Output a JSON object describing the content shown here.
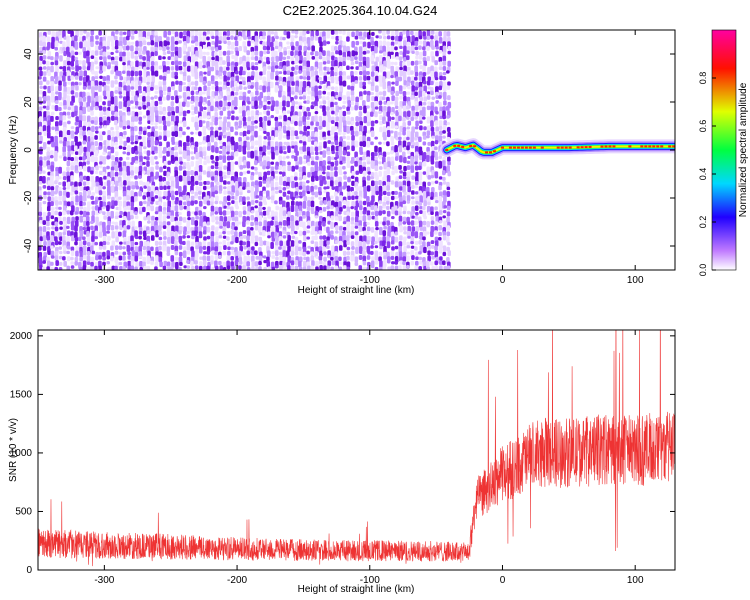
{
  "title": "C2E2.2025.364.10.04.G24",
  "chart_data": [
    {
      "type": "heatmap",
      "xlabel": "Height of straight line (km)",
      "ylabel": "Frequency (Hz)",
      "xlim": [
        -350,
        130
      ],
      "ylim": [
        -50,
        50
      ],
      "xticks": [
        -300,
        -200,
        -100,
        0,
        100
      ],
      "yticks": [
        -40,
        -20,
        0,
        20,
        40
      ],
      "noise_region": [
        -350,
        -42
      ],
      "signal_track": [
        {
          "x": -42,
          "y": 0
        },
        {
          "x": -35,
          "y": 2
        },
        {
          "x": -28,
          "y": 1
        },
        {
          "x": -22,
          "y": 2
        },
        {
          "x": -15,
          "y": -1
        },
        {
          "x": -8,
          "y": -1
        },
        {
          "x": 0,
          "y": 1
        },
        {
          "x": 20,
          "y": 1
        },
        {
          "x": 50,
          "y": 1
        },
        {
          "x": 80,
          "y": 1.5
        },
        {
          "x": 100,
          "y": 1.5
        },
        {
          "x": 130,
          "y": 1.5
        }
      ],
      "colorbar": {
        "label": "Normalized spectral amplitude",
        "range": [
          0,
          1
        ],
        "ticks": [
          "0.0",
          "0.2",
          "0.4",
          "0.6",
          "0.8"
        ],
        "colors": [
          "#ffffff",
          "#b000ff",
          "#0000ff",
          "#00e0ff",
          "#00ff00",
          "#ffff00",
          "#ff0000",
          "#ff00a0"
        ]
      }
    },
    {
      "type": "line",
      "xlabel": "Height of straight line (km)",
      "ylabel": "SNR (10 * v/v)",
      "xlim": [
        -350,
        130
      ],
      "ylim": [
        0,
        2050
      ],
      "xticks": [
        -300,
        -200,
        -100,
        0,
        100
      ],
      "yticks": [
        0,
        500,
        1000,
        1500,
        2000
      ],
      "color": "#ee3333",
      "series_envelope": {
        "x": [
          -350,
          -300,
          -250,
          -200,
          -150,
          -100,
          -50,
          -25,
          -20,
          -10,
          0,
          10,
          20,
          30,
          50,
          80,
          100,
          130
        ],
        "y": [
          230,
          210,
          200,
          180,
          170,
          165,
          160,
          150,
          600,
          700,
          820,
          880,
          960,
          1000,
          1000,
          1030,
          1020,
          1050
        ]
      }
    }
  ]
}
